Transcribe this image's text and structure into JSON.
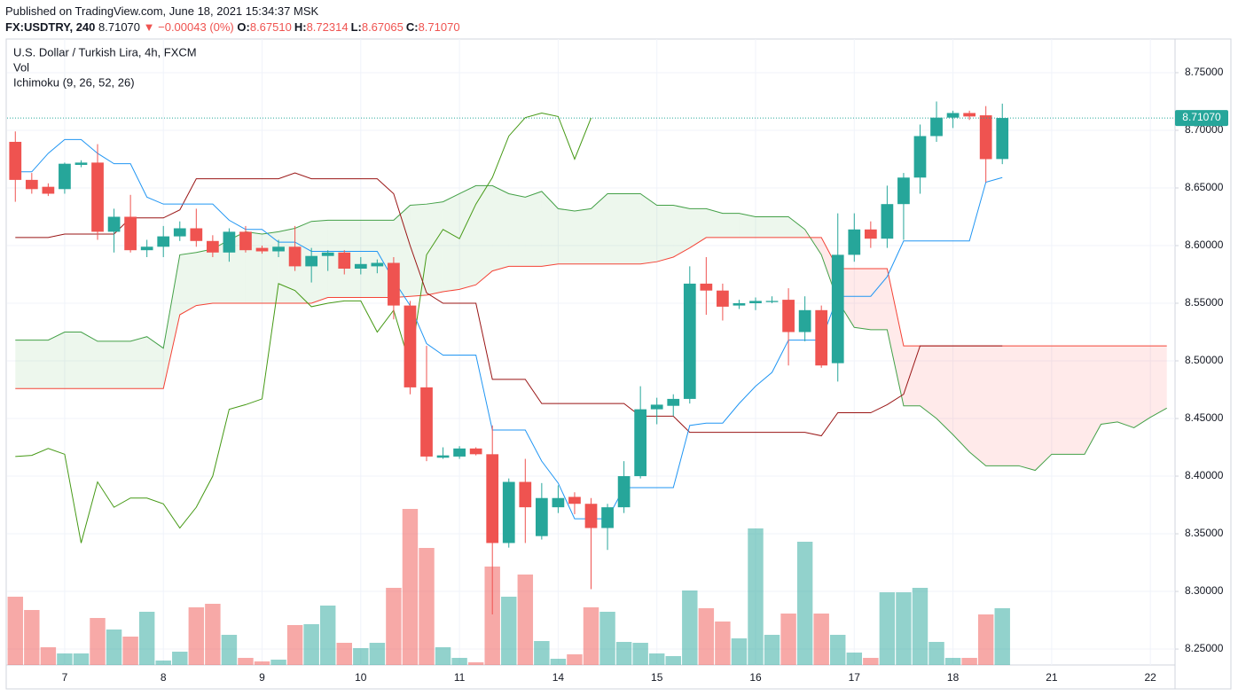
{
  "header": {
    "published": "Published on TradingView.com, June 18, 2021 15:34:37 MSK",
    "symbol": "FX:USDTRY, 240",
    "last": "8.71070",
    "change": "▼ −0.00043 (0%)",
    "ohlc": [
      {
        "label": "O:",
        "value": "8.67510"
      },
      {
        "label": "H:",
        "value": "8.72314"
      },
      {
        "label": "L:",
        "value": "8.67065"
      },
      {
        "label": "C:",
        "value": "8.71070"
      }
    ]
  },
  "chart_data": {
    "type": "candlestick",
    "title": "U.S. Dollar / Turkish Lira, 4h, FXCM",
    "indicators": [
      "Vol",
      "Ichimoku (9, 26, 52, 26)"
    ],
    "categories": [
      null,
      null,
      null,
      "7",
      null,
      null,
      null,
      null,
      null,
      "8",
      null,
      null,
      null,
      null,
      null,
      "9",
      null,
      null,
      null,
      null,
      null,
      "10",
      null,
      null,
      null,
      null,
      null,
      "11",
      null,
      null,
      null,
      null,
      null,
      "14",
      null,
      null,
      null,
      null,
      null,
      "15",
      null,
      null,
      null,
      null,
      null,
      "16",
      null,
      null,
      null,
      null,
      null,
      "17",
      null,
      null,
      null,
      null,
      null,
      "18",
      null,
      null,
      null,
      null,
      null,
      "21",
      null,
      null,
      null,
      null,
      null,
      "22",
      null
    ],
    "open": [
      8.69,
      8.657,
      8.651,
      8.649,
      8.67,
      8.672,
      8.612,
      8.625,
      8.596,
      8.599,
      8.608,
      8.615,
      8.604,
      8.594,
      8.612,
      8.598,
      8.595,
      8.599,
      8.582,
      8.591,
      8.594,
      8.58,
      8.582,
      8.585,
      8.548,
      8.477,
      8.416,
      8.417,
      8.424,
      8.419,
      8.342,
      8.395,
      8.348,
      8.373,
      8.382,
      8.376,
      8.355,
      8.373,
      8.4,
      8.458,
      8.461,
      8.467,
      8.567,
      8.561,
      8.548,
      8.55,
      8.551,
      8.553,
      8.525,
      8.544,
      8.498,
      8.592,
      8.614,
      8.606,
      8.636,
      8.659,
      8.695,
      8.711,
      8.715,
      8.713,
      8.6751,
      null,
      null,
      null,
      null,
      null,
      null,
      null,
      null,
      null,
      null
    ],
    "high": [
      8.699,
      8.663,
      8.654,
      8.672,
      8.674,
      8.688,
      8.632,
      8.644,
      8.605,
      8.617,
      8.621,
      8.632,
      8.609,
      8.615,
      8.617,
      8.6,
      8.605,
      8.617,
      8.598,
      8.596,
      8.596,
      8.59,
      8.588,
      8.59,
      8.552,
      8.513,
      8.425,
      8.426,
      8.425,
      8.444,
      8.398,
      8.415,
      8.394,
      8.392,
      8.386,
      8.381,
      8.376,
      8.413,
      8.478,
      8.468,
      8.471,
      8.582,
      8.59,
      8.567,
      8.553,
      8.555,
      8.556,
      8.563,
      8.556,
      8.548,
      8.628,
      8.628,
      8.621,
      8.652,
      8.663,
      8.705,
      8.725,
      8.717,
      8.717,
      8.721,
      8.72314,
      null,
      null,
      null,
      null,
      null,
      null,
      null,
      null,
      null,
      null
    ],
    "low": [
      8.638,
      8.645,
      8.643,
      8.645,
      8.668,
      8.605,
      8.594,
      8.594,
      8.59,
      8.59,
      8.604,
      8.599,
      8.59,
      8.586,
      8.594,
      8.593,
      8.59,
      8.578,
      8.568,
      8.578,
      8.575,
      8.575,
      8.576,
      8.536,
      8.471,
      8.413,
      8.415,
      8.415,
      8.418,
      8.28,
      8.338,
      8.342,
      8.345,
      8.368,
      8.367,
      8.302,
      8.336,
      8.368,
      8.398,
      8.445,
      8.452,
      8.463,
      8.54,
      8.535,
      8.545,
      8.544,
      8.55,
      8.496,
      8.517,
      8.494,
      8.482,
      8.586,
      8.598,
      8.598,
      8.605,
      8.645,
      8.69,
      8.702,
      8.709,
      8.655,
      8.67065,
      null,
      null,
      null,
      null,
      null,
      null,
      null,
      null,
      null,
      null
    ],
    "close": [
      8.657,
      8.649,
      8.645,
      8.671,
      8.672,
      8.612,
      8.625,
      8.596,
      8.599,
      8.608,
      8.615,
      8.604,
      8.594,
      8.612,
      8.596,
      8.595,
      8.599,
      8.582,
      8.591,
      8.594,
      8.58,
      8.584,
      8.585,
      8.548,
      8.477,
      8.417,
      8.418,
      8.424,
      8.419,
      8.342,
      8.395,
      8.373,
      8.381,
      8.381,
      8.376,
      8.355,
      8.373,
      8.4,
      8.458,
      8.462,
      8.467,
      8.567,
      8.561,
      8.547,
      8.55,
      8.552,
      8.552,
      8.525,
      8.544,
      8.496,
      8.592,
      8.614,
      8.606,
      8.636,
      8.659,
      8.695,
      8.711,
      8.715,
      8.712,
      8.675,
      8.7107,
      null,
      null,
      null,
      null,
      null,
      null,
      null,
      null,
      null,
      null
    ],
    "volume": [
      77,
      62,
      20,
      13,
      13,
      53,
      40,
      32,
      60,
      5,
      15,
      65,
      69,
      34,
      8,
      4,
      6,
      45,
      46,
      67,
      25,
      19,
      25,
      87,
      176,
      132,
      20,
      8,
      3,
      111,
      77,
      102,
      27,
      7,
      12,
      65,
      60,
      26,
      25,
      13,
      10,
      84,
      64,
      49,
      30,
      154,
      34,
      58,
      139,
      58,
      34,
      14,
      8,
      82,
      82,
      87,
      26,
      8,
      8,
      57,
      64,
      null,
      null,
      null,
      null,
      null,
      null,
      null,
      null,
      null,
      null
    ],
    "up_color": "#26a69a",
    "down_color": "#ef5350",
    "ylim": [
      8.2362,
      8.7792
    ],
    "yticks": [
      {
        "value": 8.25,
        "label": "8.25000"
      },
      {
        "value": 8.3,
        "label": "8.30000"
      },
      {
        "value": 8.35,
        "label": "8.35000"
      },
      {
        "value": 8.4,
        "label": "8.40000"
      },
      {
        "value": 8.45,
        "label": "8.45000"
      },
      {
        "value": 8.5,
        "label": "8.50000"
      },
      {
        "value": 8.55,
        "label": "8.55000"
      },
      {
        "value": 8.6,
        "label": "8.60000"
      },
      {
        "value": 8.65,
        "label": "8.65000"
      },
      {
        "value": 8.7,
        "label": "8.70000"
      },
      {
        "value": 8.75,
        "label": "8.75000"
      }
    ],
    "grid": true,
    "last_price": {
      "value": 8.7107,
      "label": "8.71070"
    },
    "ichimoku": {
      "conversion": {
        "color": "#2196f3",
        "values": [
          8.664,
          8.664,
          8.68,
          8.692,
          8.692,
          8.68,
          8.671,
          8.671,
          8.642,
          8.636,
          8.636,
          8.636,
          8.636,
          8.622,
          8.614,
          8.614,
          8.603,
          8.603,
          8.595,
          8.595,
          8.595,
          8.595,
          8.595,
          8.57,
          8.548,
          8.515,
          8.505,
          8.505,
          8.505,
          8.44,
          8.44,
          8.44,
          8.413,
          8.394,
          8.363,
          8.363,
          8.363,
          8.39,
          8.39,
          8.39,
          8.39,
          8.444,
          8.446,
          8.446,
          8.463,
          8.478,
          8.49,
          8.518,
          8.518,
          8.518,
          8.556,
          8.556,
          8.556,
          8.573,
          8.604,
          8.604,
          8.604,
          8.604,
          8.604,
          8.655,
          8.659,
          null,
          null,
          null,
          null,
          null,
          null,
          null,
          null,
          null,
          null
        ]
      },
      "base": {
        "color": "#991515",
        "values": [
          8.607,
          8.607,
          8.607,
          8.61,
          8.61,
          8.61,
          8.61,
          8.624,
          8.624,
          8.624,
          8.631,
          8.658,
          8.658,
          8.658,
          8.658,
          8.658,
          8.658,
          8.663,
          8.658,
          8.658,
          8.658,
          8.658,
          8.658,
          8.645,
          8.6,
          8.559,
          8.55,
          8.55,
          8.55,
          8.484,
          8.484,
          8.484,
          8.463,
          8.463,
          8.463,
          8.463,
          8.463,
          8.463,
          8.452,
          8.452,
          8.452,
          8.438,
          8.438,
          8.438,
          8.438,
          8.438,
          8.438,
          8.438,
          8.438,
          8.435,
          8.455,
          8.455,
          8.455,
          8.462,
          8.471,
          8.513,
          8.513,
          8.513,
          8.513,
          8.513,
          8.513,
          null,
          null,
          null,
          null,
          null,
          null,
          null,
          null,
          null,
          null
        ]
      },
      "lagging": {
        "color": "#459915",
        "values": [
          8.417,
          8.418,
          8.424,
          8.419,
          8.342,
          8.395,
          8.373,
          8.381,
          8.381,
          8.376,
          8.355,
          8.373,
          8.4,
          8.458,
          8.462,
          8.467,
          8.567,
          8.561,
          8.547,
          8.55,
          8.552,
          8.552,
          8.525,
          8.544,
          8.496,
          8.592,
          8.614,
          8.606,
          8.636,
          8.659,
          8.695,
          8.711,
          8.715,
          8.712,
          8.675,
          8.7107,
          null,
          null,
          null,
          null,
          null,
          null,
          null,
          null,
          null,
          null,
          null,
          null,
          null,
          null,
          null,
          null,
          null,
          null,
          null,
          null,
          null,
          null,
          null,
          null,
          null,
          null,
          null,
          null,
          null,
          null,
          null,
          null,
          null,
          null,
          null
        ]
      },
      "lead_a": {
        "color": "#43a047",
        "fill": "rgba(76,175,80,0.10)",
        "values": [
          8.518,
          8.518,
          8.518,
          8.525,
          8.525,
          8.517,
          8.517,
          8.517,
          8.521,
          8.511,
          8.592,
          8.594,
          8.597,
          8.605,
          8.612,
          8.61,
          8.612,
          8.615,
          8.621,
          8.622,
          8.622,
          8.622,
          8.622,
          8.622,
          8.635,
          8.636,
          8.638,
          8.645,
          8.652,
          8.652,
          8.645,
          8.642,
          8.647,
          8.632,
          8.63,
          8.632,
          8.645,
          8.645,
          8.645,
          8.635,
          8.635,
          8.632,
          8.632,
          8.628,
          8.628,
          8.625,
          8.625,
          8.625,
          8.614,
          8.592,
          8.552,
          8.529,
          8.527,
          8.527,
          8.461,
          8.461,
          8.45,
          8.436,
          8.421,
          8.409,
          8.409,
          8.409,
          8.405,
          8.419,
          8.419,
          8.419,
          8.445,
          8.447,
          8.442,
          8.451,
          8.459
        ]
      },
      "lead_b": {
        "color": "#f44336",
        "fill": "rgba(255,82,82,0.12)",
        "values": [
          8.476,
          8.476,
          8.476,
          8.476,
          8.476,
          8.476,
          8.476,
          8.476,
          8.476,
          8.476,
          8.54,
          8.548,
          8.55,
          8.55,
          8.55,
          8.55,
          8.55,
          8.55,
          8.55,
          8.555,
          8.555,
          8.555,
          8.555,
          8.555,
          8.556,
          8.557,
          8.56,
          8.562,
          8.566,
          8.578,
          8.582,
          8.582,
          8.582,
          8.584,
          8.584,
          8.584,
          8.584,
          8.584,
          8.584,
          8.586,
          8.59,
          8.598,
          8.607,
          8.607,
          8.607,
          8.607,
          8.607,
          8.607,
          8.607,
          8.607,
          8.58,
          8.58,
          8.58,
          8.58,
          8.513,
          8.513,
          8.513,
          8.513,
          8.513,
          8.513,
          8.513,
          8.513,
          8.513,
          8.513,
          8.513,
          8.513,
          8.513,
          8.513,
          8.513,
          8.513,
          8.513
        ]
      }
    }
  }
}
